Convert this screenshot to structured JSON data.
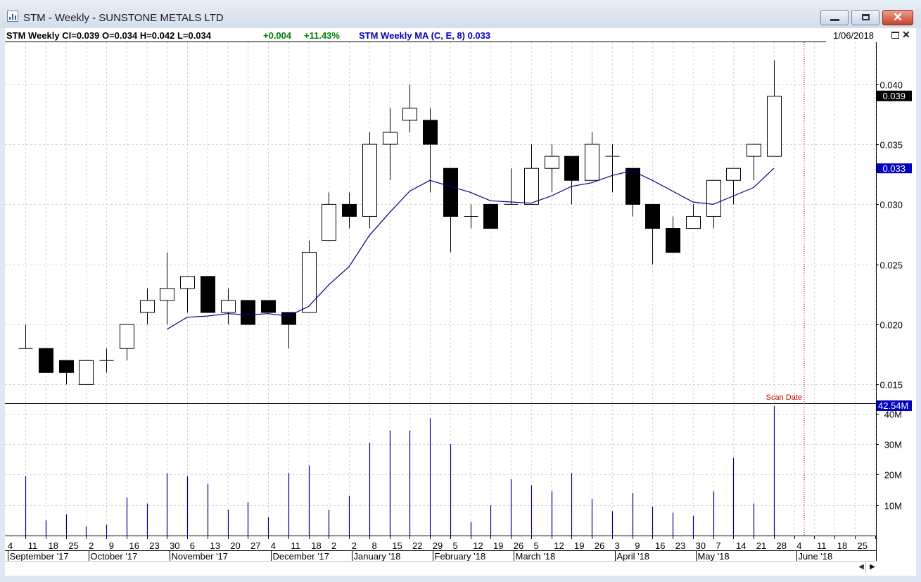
{
  "window": {
    "title": "STM - Weekly - SUNSTONE METALS LTD"
  },
  "header": {
    "quote": "STM  Weekly  Cl=0.039  O=0.034  H=0.042  L=0.034",
    "change_abs": "+0.004",
    "change_pct": "+11.43%",
    "ma_label": "STM  Weekly  MA (C, E, 8) 0.033",
    "date": "1/06/2018"
  },
  "colors": {
    "background": "#ffffff",
    "candle": "#000000",
    "ma_line": "#00008b",
    "volume": "#00008b",
    "grid": "#d3d3d3",
    "scan_date": "#c00000",
    "price_tag": "#000000",
    "ma_tag": "#0000c0",
    "change_green": "#008000",
    "ma_text": "#0000c0"
  },
  "icons": {
    "title": "chart-window-icon",
    "minimize": "minimize-icon",
    "maximize": "maximize-icon",
    "close": "close-icon"
  },
  "chart_data": {
    "type": "candlestick",
    "title": "STM - Weekly - SUNSTONE METALS LTD",
    "price_axis": {
      "ticks": [
        "0.040",
        "0.035",
        "0.030",
        "0.025",
        "0.020",
        "0.015"
      ],
      "range": [
        0.0135,
        0.0435
      ]
    },
    "volume_axis": {
      "ticks": [
        "10M",
        "20M",
        "30M",
        "40M"
      ],
      "range": [
        0,
        43
      ]
    },
    "last_price_label": "0.039",
    "ma_value_label": "0.033",
    "last_volume_label": "42.54M",
    "scan_date_label": "Scan Date",
    "scan_date_index": 38,
    "week_labels": [
      "4",
      "11",
      "18",
      "25",
      "2",
      "9",
      "16",
      "23",
      "30",
      "6",
      "13",
      "20",
      "27",
      "4",
      "11",
      "18",
      "2",
      "2",
      "8",
      "15",
      "22",
      "29",
      "5",
      "12",
      "19",
      "26",
      "5",
      "12",
      "19",
      "26",
      "3",
      "9",
      "16",
      "23",
      "30",
      "7",
      "14",
      "21",
      "28",
      "4",
      "11",
      "18",
      "25"
    ],
    "month_labels": [
      {
        "label": "September '17",
        "index": 0
      },
      {
        "label": "October '17",
        "index": 4
      },
      {
        "label": "November '17",
        "index": 8
      },
      {
        "label": "December '17",
        "index": 13
      },
      {
        "label": "January '18",
        "index": 17
      },
      {
        "label": "February '18",
        "index": 21
      },
      {
        "label": "March '18",
        "index": 25
      },
      {
        "label": "April '18",
        "index": 30
      },
      {
        "label": "May '18",
        "index": 34
      },
      {
        "label": "June '18",
        "index": 39
      }
    ],
    "candles": [
      {
        "o": 0.018,
        "h": 0.02,
        "l": 0.018,
        "c": 0.018
      },
      {
        "o": 0.018,
        "h": 0.018,
        "l": 0.016,
        "c": 0.016
      },
      {
        "o": 0.017,
        "h": 0.017,
        "l": 0.015,
        "c": 0.016
      },
      {
        "o": 0.015,
        "h": 0.017,
        "l": 0.015,
        "c": 0.017
      },
      {
        "o": 0.017,
        "h": 0.018,
        "l": 0.016,
        "c": 0.017
      },
      {
        "o": 0.018,
        "h": 0.02,
        "l": 0.017,
        "c": 0.02
      },
      {
        "o": 0.021,
        "h": 0.023,
        "l": 0.02,
        "c": 0.022
      },
      {
        "o": 0.022,
        "h": 0.026,
        "l": 0.02,
        "c": 0.023
      },
      {
        "o": 0.023,
        "h": 0.024,
        "l": 0.021,
        "c": 0.024
      },
      {
        "o": 0.024,
        "h": 0.024,
        "l": 0.021,
        "c": 0.021
      },
      {
        "o": 0.021,
        "h": 0.023,
        "l": 0.02,
        "c": 0.022
      },
      {
        "o": 0.022,
        "h": 0.022,
        "l": 0.02,
        "c": 0.02
      },
      {
        "o": 0.022,
        "h": 0.022,
        "l": 0.021,
        "c": 0.021
      },
      {
        "o": 0.021,
        "h": 0.021,
        "l": 0.018,
        "c": 0.02
      },
      {
        "o": 0.021,
        "h": 0.027,
        "l": 0.021,
        "c": 0.026
      },
      {
        "o": 0.027,
        "h": 0.031,
        "l": 0.027,
        "c": 0.03
      },
      {
        "o": 0.03,
        "h": 0.031,
        "l": 0.028,
        "c": 0.029
      },
      {
        "o": 0.029,
        "h": 0.036,
        "l": 0.028,
        "c": 0.035
      },
      {
        "o": 0.035,
        "h": 0.038,
        "l": 0.032,
        "c": 0.036
      },
      {
        "o": 0.037,
        "h": 0.04,
        "l": 0.036,
        "c": 0.038
      },
      {
        "o": 0.037,
        "h": 0.038,
        "l": 0.031,
        "c": 0.035
      },
      {
        "o": 0.033,
        "h": 0.033,
        "l": 0.026,
        "c": 0.029
      },
      {
        "o": 0.029,
        "h": 0.03,
        "l": 0.028,
        "c": 0.029
      },
      {
        "o": 0.03,
        "h": 0.03,
        "l": 0.028,
        "c": 0.028
      },
      {
        "o": 0.03,
        "h": 0.033,
        "l": 0.03,
        "c": 0.03
      },
      {
        "o": 0.03,
        "h": 0.035,
        "l": 0.03,
        "c": 0.033
      },
      {
        "o": 0.033,
        "h": 0.035,
        "l": 0.031,
        "c": 0.034
      },
      {
        "o": 0.034,
        "h": 0.034,
        "l": 0.03,
        "c": 0.032
      },
      {
        "o": 0.032,
        "h": 0.036,
        "l": 0.032,
        "c": 0.035
      },
      {
        "o": 0.034,
        "h": 0.035,
        "l": 0.031,
        "c": 0.034
      },
      {
        "o": 0.033,
        "h": 0.033,
        "l": 0.029,
        "c": 0.03
      },
      {
        "o": 0.03,
        "h": 0.03,
        "l": 0.025,
        "c": 0.028
      },
      {
        "o": 0.028,
        "h": 0.029,
        "l": 0.026,
        "c": 0.026
      },
      {
        "o": 0.028,
        "h": 0.03,
        "l": 0.028,
        "c": 0.029
      },
      {
        "o": 0.029,
        "h": 0.032,
        "l": 0.028,
        "c": 0.032
      },
      {
        "o": 0.032,
        "h": 0.033,
        "l": 0.03,
        "c": 0.033
      },
      {
        "o": 0.034,
        "h": 0.035,
        "l": 0.032,
        "c": 0.035
      },
      {
        "o": 0.034,
        "h": 0.042,
        "l": 0.034,
        "c": 0.039
      }
    ],
    "ma_series": [
      null,
      null,
      null,
      null,
      null,
      null,
      null,
      0.0196,
      0.0206,
      0.0207,
      0.0209,
      0.0208,
      0.0209,
      0.0207,
      0.0215,
      0.0233,
      0.0248,
      0.0274,
      0.0293,
      0.0311,
      0.032,
      0.0315,
      0.031,
      0.0303,
      0.0302,
      0.0301,
      0.0307,
      0.0315,
      0.0318,
      0.0324,
      0.0328,
      0.032,
      0.0311,
      0.0302,
      0.03,
      0.0307,
      0.0314,
      0.033
    ],
    "volume_m": [
      19.5,
      5,
      7,
      3,
      3.5,
      12.5,
      10.5,
      20.5,
      19.5,
      17,
      8.5,
      11,
      6,
      20.5,
      23,
      8.5,
      13,
      30.5,
      34.5,
      34.5,
      38.5,
      30,
      4.5,
      10,
      18.5,
      16.5,
      14.5,
      20.5,
      12,
      8,
      14,
      9.5,
      7.5,
      6.5,
      14.5,
      25.5,
      10.5,
      42.54
    ]
  },
  "scrollbar": {
    "left_arrow": "◀",
    "right_arrow": "▶"
  }
}
